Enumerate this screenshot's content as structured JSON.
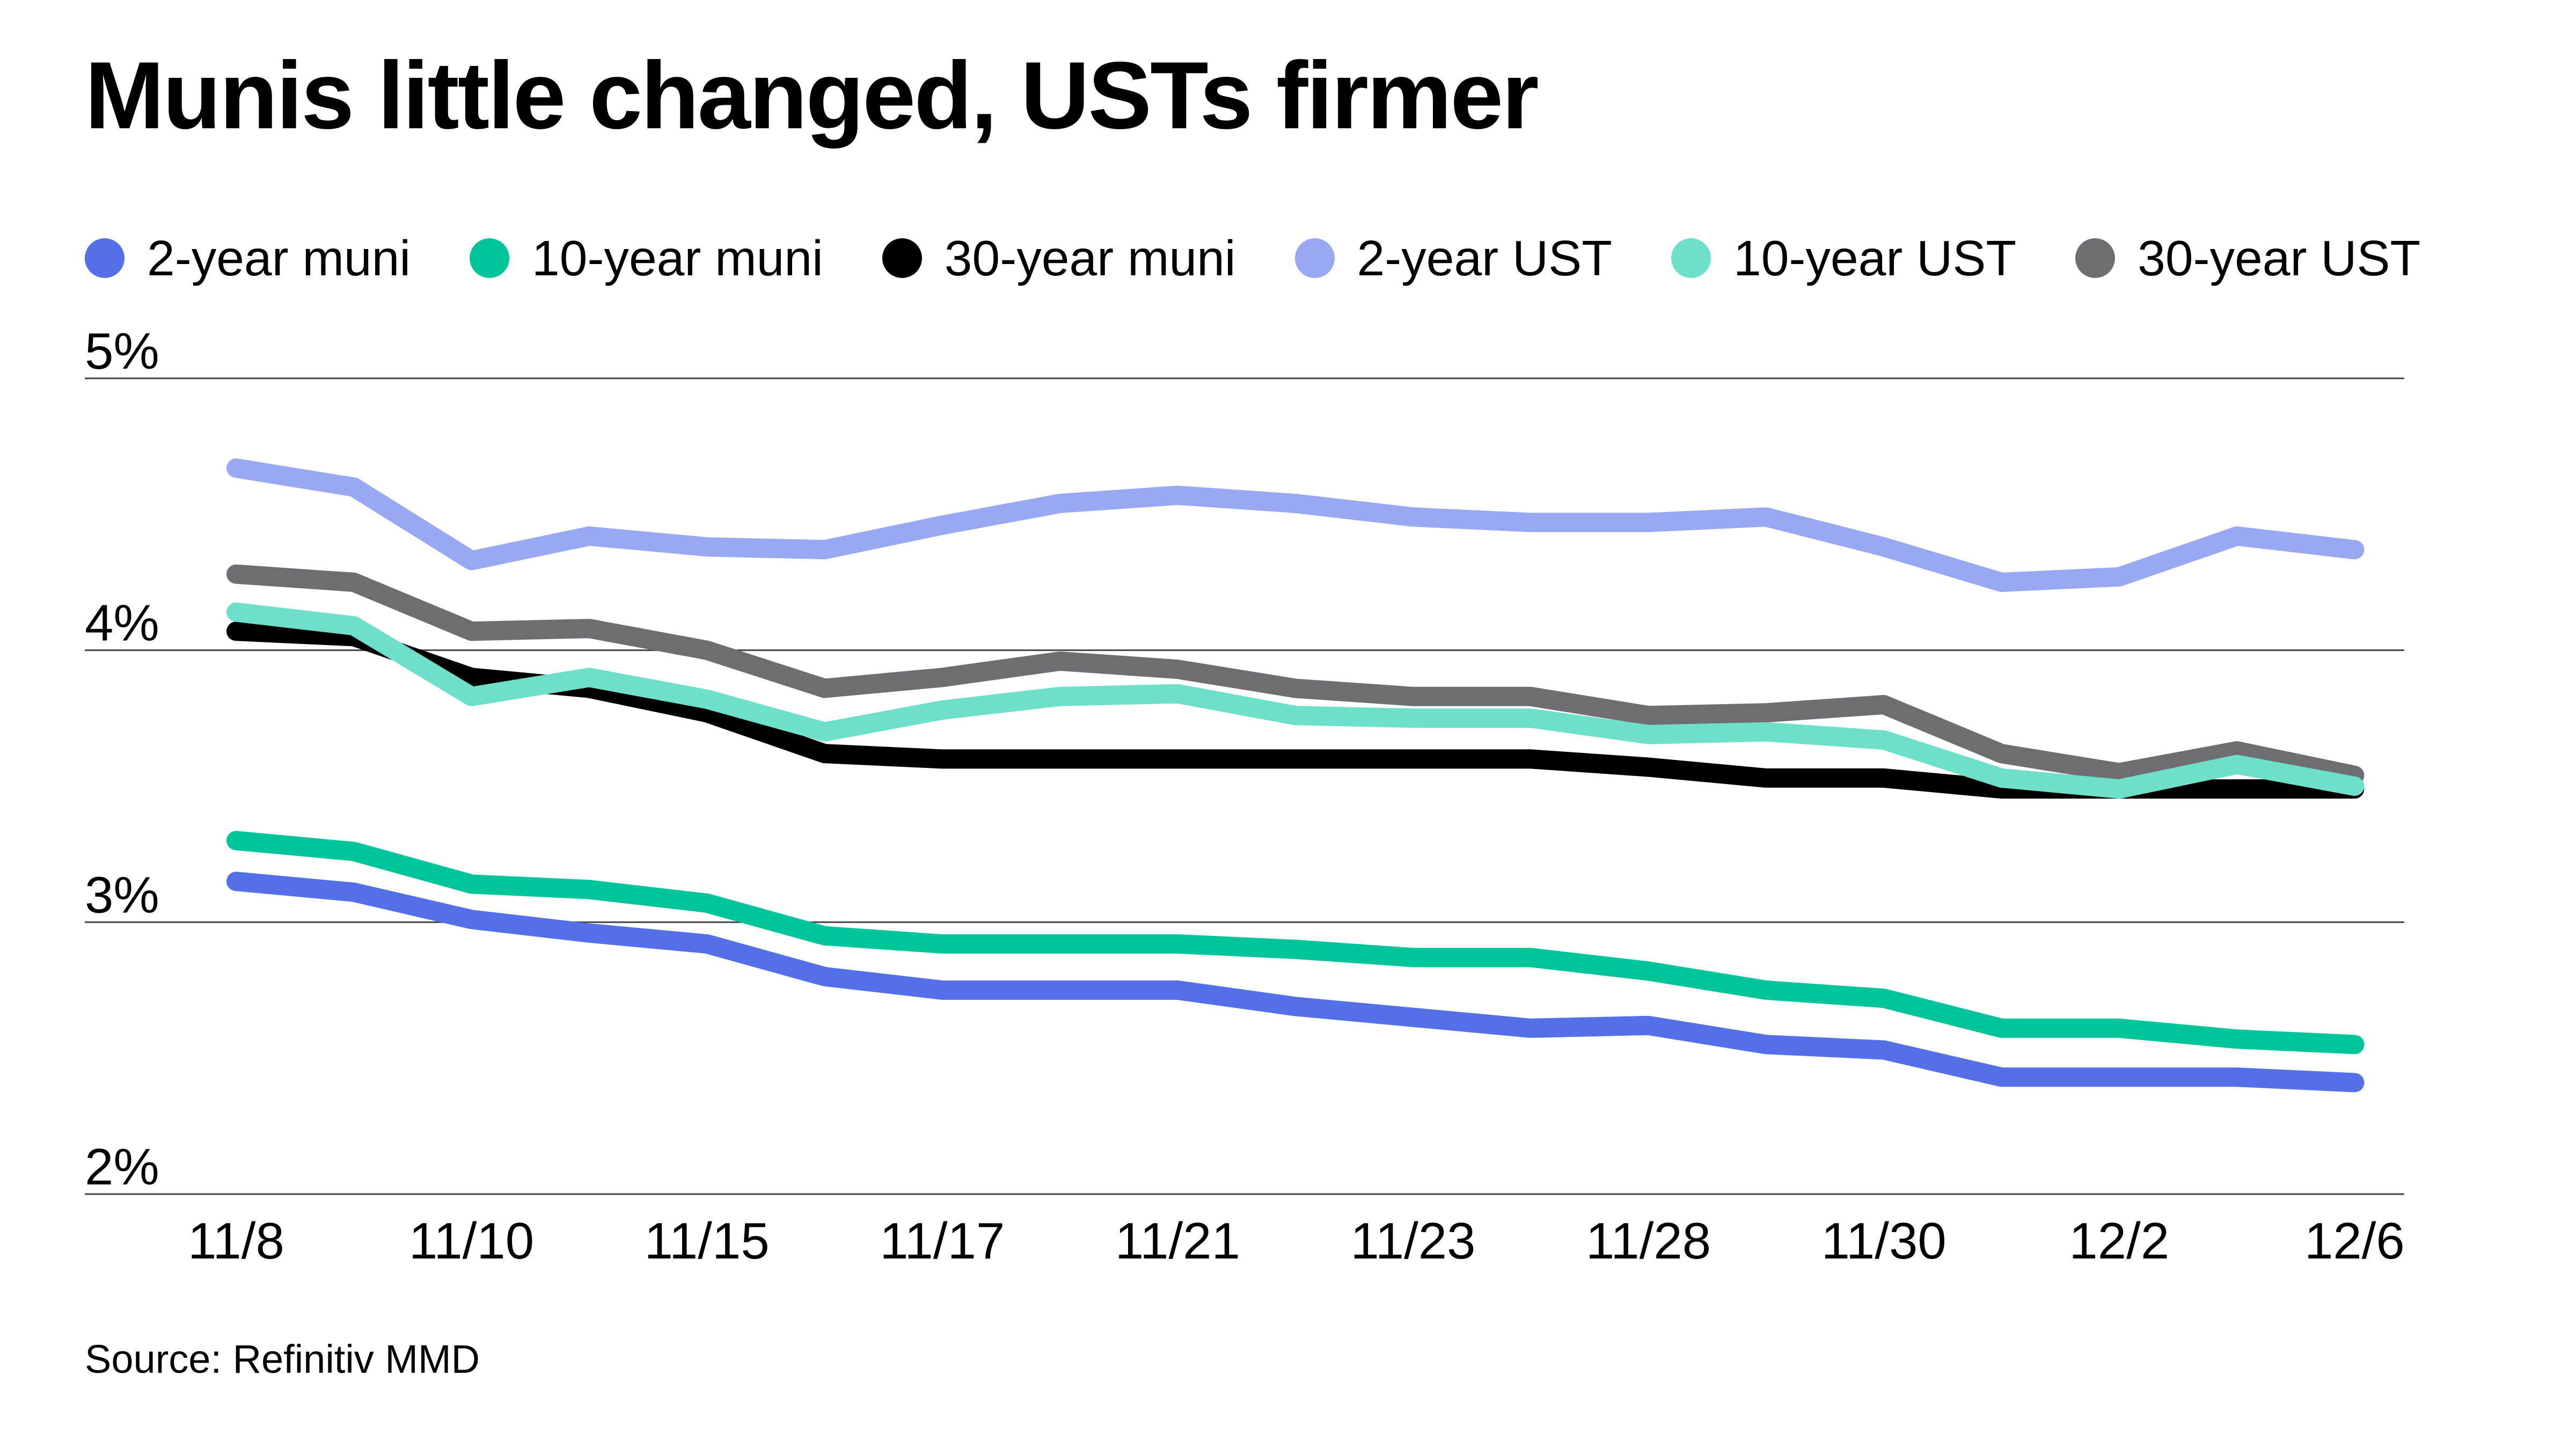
{
  "title": "Munis little changed, USTs firmer",
  "source": "Source: Refinitiv MMD",
  "legend": [
    {
      "label": "2-year muni",
      "color": "#5470e8"
    },
    {
      "label": "10-year muni",
      "color": "#00c49a"
    },
    {
      "label": "30-year muni",
      "color": "#000000"
    },
    {
      "label": "2-year UST",
      "color": "#98a8f2"
    },
    {
      "label": "10-year UST",
      "color": "#6edfc9"
    },
    {
      "label": "30-year UST",
      "color": "#6e6e72"
    }
  ],
  "chart_data": {
    "type": "line",
    "title": "Munis little changed, USTs firmer",
    "xlabel": "",
    "ylabel": "",
    "ylim": [
      2,
      5
    ],
    "y_tick_labels": [
      "5%",
      "4%",
      "3%",
      "2%"
    ],
    "y_tick_values": [
      5,
      4,
      3,
      2
    ],
    "x": [
      "11/8",
      "11/9",
      "11/10",
      "11/14",
      "11/15",
      "11/16",
      "11/17",
      "11/18",
      "11/21",
      "11/22",
      "11/23",
      "11/25",
      "11/28",
      "11/29",
      "11/30",
      "12/1",
      "12/2",
      "12/5",
      "12/6"
    ],
    "x_tick_labels": [
      "11/8",
      "11/10",
      "11/15",
      "11/17",
      "11/21",
      "11/23",
      "11/28",
      "11/30",
      "12/2",
      "12/6"
    ],
    "grid": true,
    "legend_position": "top",
    "series": [
      {
        "name": "2-year UST",
        "color": "#98a8f2",
        "values": [
          4.67,
          4.6,
          4.33,
          4.42,
          4.38,
          4.37,
          4.46,
          4.54,
          4.57,
          4.54,
          4.49,
          4.47,
          4.47,
          4.49,
          4.38,
          4.25,
          4.27,
          4.42,
          4.37
        ]
      },
      {
        "name": "30-year UST",
        "color": "#6e6e72",
        "values": [
          4.28,
          4.25,
          4.07,
          4.08,
          4.0,
          3.86,
          3.9,
          3.96,
          3.93,
          3.86,
          3.83,
          3.83,
          3.76,
          3.77,
          3.8,
          3.62,
          3.55,
          3.63,
          3.54
        ]
      },
      {
        "name": "30-year muni",
        "color": "#000000",
        "values": [
          4.07,
          4.05,
          3.9,
          3.86,
          3.77,
          3.62,
          3.6,
          3.6,
          3.6,
          3.6,
          3.6,
          3.6,
          3.57,
          3.53,
          3.53,
          3.49,
          3.49,
          3.49,
          3.49
        ]
      },
      {
        "name": "10-year UST",
        "color": "#6edfc9",
        "values": [
          4.14,
          4.09,
          3.83,
          3.9,
          3.82,
          3.7,
          3.78,
          3.83,
          3.84,
          3.76,
          3.75,
          3.75,
          3.69,
          3.7,
          3.67,
          3.53,
          3.49,
          3.58,
          3.5
        ]
      },
      {
        "name": "10-year muni",
        "color": "#00c49a",
        "values": [
          3.3,
          3.26,
          3.14,
          3.12,
          3.07,
          2.95,
          2.92,
          2.92,
          2.92,
          2.9,
          2.87,
          2.87,
          2.82,
          2.75,
          2.72,
          2.61,
          2.61,
          2.57,
          2.55
        ]
      },
      {
        "name": "2-year muni",
        "color": "#5470e8",
        "values": [
          3.15,
          3.11,
          3.01,
          2.96,
          2.92,
          2.8,
          2.75,
          2.75,
          2.75,
          2.69,
          2.65,
          2.61,
          2.62,
          2.55,
          2.53,
          2.43,
          2.43,
          2.43,
          2.41
        ]
      }
    ]
  }
}
